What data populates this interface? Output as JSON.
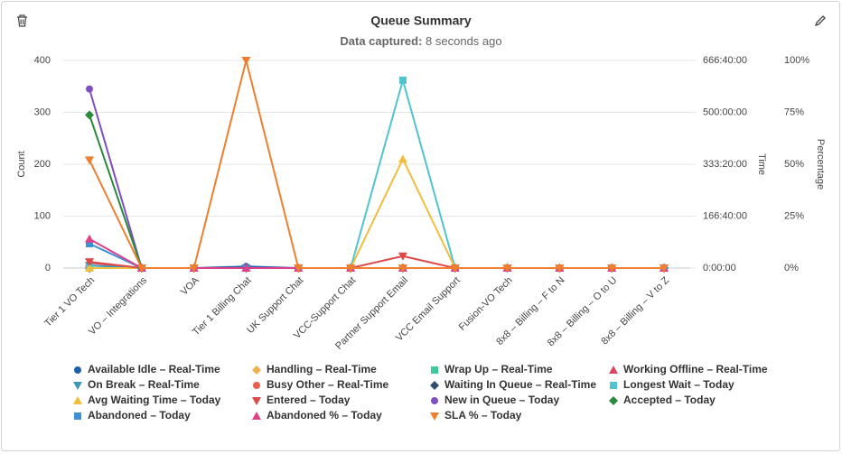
{
  "chart_data": {
    "type": "line",
    "title": "Queue Summary",
    "subtitle": {
      "label": "Data captured:",
      "text": "8 seconds ago"
    },
    "y_label": "Count",
    "y2_label": "Time",
    "y3_label": "Percentage",
    "categories": [
      "Tier 1 VO Tech",
      "VO – Integrations",
      "VOA",
      "Tier 1 Billing Chat",
      "UK Support Chat",
      "VCC-Support Chat",
      "Partner Support Email",
      "VCC Email Support",
      "Fusion-VO Tech",
      "8x8 – Billing – F to N",
      "8x8 – Billing – O to U",
      "8x8 – Billing – V to Z"
    ],
    "ylim": [
      0,
      400
    ],
    "yticks": [
      0,
      100,
      200,
      300,
      400
    ],
    "y2lim": [
      0,
      2400000
    ],
    "y2ticks": [
      {
        "value": 0,
        "label": "0:00:00"
      },
      {
        "value": 600000,
        "label": "166:40:00"
      },
      {
        "value": 1200000,
        "label": "333:20:00"
      },
      {
        "value": 1800000,
        "label": "500:00:00"
      },
      {
        "value": 2400000,
        "label": "666:40:00"
      }
    ],
    "y3lim": [
      0,
      100
    ],
    "y3ticks": [
      {
        "value": 0,
        "label": "0%"
      },
      {
        "value": 25,
        "label": "25%"
      },
      {
        "value": 50,
        "label": "50%"
      },
      {
        "value": 75,
        "label": "75%"
      },
      {
        "value": 100,
        "label": "100%"
      }
    ],
    "grid": true,
    "legend": "bottom",
    "series": [
      {
        "name": "Available Idle – Real-Time",
        "color": "#1f5fa8",
        "marker": "circle",
        "values": [
          0,
          0,
          0,
          3,
          0,
          0,
          0,
          0,
          0,
          0,
          0,
          0
        ]
      },
      {
        "name": "Handling – Real-Time",
        "color": "#f0b050",
        "marker": "diamond",
        "axis": "y2",
        "values": [
          0,
          0,
          0,
          0,
          0,
          0,
          0,
          0,
          0,
          0,
          0,
          0
        ]
      },
      {
        "name": "Wrap Up – Real-Time",
        "color": "#3ec99a",
        "marker": "square",
        "axis": "y2",
        "values": [
          0,
          0,
          0,
          0,
          0,
          0,
          0,
          0,
          0,
          0,
          0,
          0
        ]
      },
      {
        "name": "Working Offline – Real-Time",
        "color": "#d9465f",
        "marker": "triangle",
        "values": [
          10,
          0,
          0,
          0,
          0,
          0,
          0,
          0,
          0,
          0,
          0,
          0
        ]
      },
      {
        "name": "On Break – Real-Time",
        "color": "#3a9ab8",
        "marker": "triangle-down",
        "values": [
          5,
          0,
          0,
          0,
          0,
          0,
          0,
          0,
          0,
          0,
          0,
          0
        ]
      },
      {
        "name": "Busy Other – Real-Time",
        "color": "#e8604c",
        "marker": "circle",
        "values": [
          0,
          0,
          0,
          0,
          0,
          0,
          0,
          0,
          0,
          0,
          0,
          0
        ]
      },
      {
        "name": "Waiting In Queue – Real-Time",
        "color": "#2d4f6b",
        "marker": "diamond",
        "values": [
          0,
          0,
          0,
          0,
          0,
          0,
          0,
          0,
          0,
          0,
          0,
          0
        ]
      },
      {
        "name": "Longest Wait – Today",
        "color": "#4ec4d0",
        "marker": "square",
        "axis": "y2",
        "values": [
          0,
          0,
          0,
          0,
          0,
          0,
          2172000,
          0,
          0,
          0,
          0,
          0
        ]
      },
      {
        "name": "Avg Waiting Time – Today",
        "color": "#f0be3c",
        "marker": "triangle",
        "axis": "y2",
        "values": [
          0,
          0,
          0,
          0,
          0,
          0,
          1260000,
          0,
          0,
          0,
          0,
          0
        ]
      },
      {
        "name": "Entered – Today",
        "color": "#e04848",
        "marker": "triangle-down",
        "values": [
          12,
          0,
          0,
          0,
          0,
          0,
          23,
          0,
          0,
          0,
          0,
          0
        ]
      },
      {
        "name": "New in Queue – Today",
        "color": "#7d4fc0",
        "marker": "circle",
        "values": [
          345,
          0,
          0,
          0,
          0,
          0,
          0,
          0,
          0,
          0,
          0,
          0
        ]
      },
      {
        "name": "Accepted – Today",
        "color": "#2a8a3e",
        "marker": "diamond",
        "values": [
          295,
          0,
          0,
          0,
          0,
          0,
          0,
          0,
          0,
          0,
          0,
          0
        ]
      },
      {
        "name": "Abandoned – Today",
        "color": "#3d8fd6",
        "marker": "square",
        "values": [
          47,
          0,
          0,
          0,
          0,
          0,
          0,
          0,
          0,
          0,
          0,
          0
        ]
      },
      {
        "name": "Abandoned % – Today",
        "color": "#e0408a",
        "marker": "triangle",
        "axis": "y3",
        "values": [
          14,
          0,
          0,
          0,
          0,
          0,
          0,
          0,
          0,
          0,
          0,
          0
        ]
      },
      {
        "name": "SLA % – Today",
        "color": "#f07e2e",
        "marker": "triangle-down",
        "axis": "y3",
        "values": [
          52,
          0,
          0,
          100,
          0,
          0,
          0,
          0,
          0,
          0,
          0,
          0
        ]
      }
    ]
  }
}
